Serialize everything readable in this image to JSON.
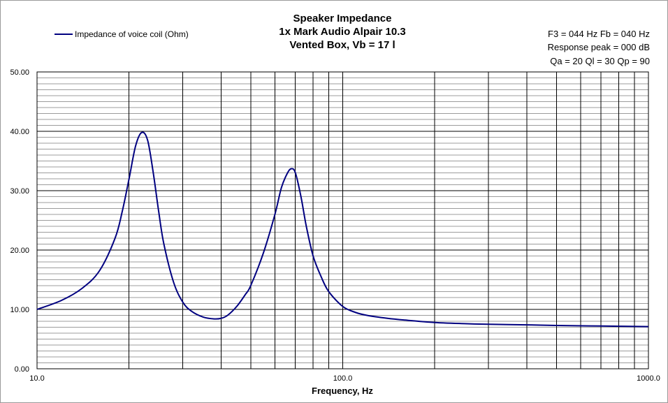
{
  "chart_data": {
    "type": "line",
    "title": [
      "Speaker Impedance",
      "1x Mark Audio Alpair 10.3",
      "Vented Box, Vb = 17 l"
    ],
    "xlabel": "Frequency, Hz",
    "ylabel": "",
    "x_scale": "log",
    "xlim": [
      10,
      1000
    ],
    "ylim": [
      0,
      50
    ],
    "x_tick_labels": [
      "10.0",
      "100.0",
      "1000.0"
    ],
    "y_tick_labels": [
      "0.00",
      "10.00",
      "20.00",
      "30.00",
      "40.00",
      "50.00"
    ],
    "grid": true,
    "legend_position": "top-left",
    "info_lines": [
      "F3 = 044  Hz  Fb = 040  Hz",
      "Response  peak = 000  dB",
      "Qa = 20  Ql = 30  Qp = 90"
    ],
    "series": [
      {
        "name": "Impedance of voice coil (Ohm)",
        "color": "#000080",
        "x": [
          10,
          12,
          14,
          16,
          18,
          19,
          20,
          21,
          22,
          23,
          24,
          25,
          26,
          28,
          30,
          32,
          35,
          38,
          40,
          42,
          45,
          48,
          50,
          55,
          60,
          63,
          66,
          68,
          70,
          73,
          76,
          80,
          85,
          90,
          100,
          110,
          120,
          140,
          160,
          200,
          250,
          300,
          400,
          500,
          700,
          1000
        ],
        "y": [
          10.0,
          11.5,
          13.5,
          16.5,
          22.0,
          26.5,
          32.0,
          37.5,
          39.8,
          38.5,
          33.0,
          26.5,
          21.0,
          14.5,
          11.2,
          9.7,
          8.7,
          8.4,
          8.5,
          9.0,
          10.5,
          12.5,
          14.0,
          19.5,
          26.0,
          30.5,
          33.0,
          33.7,
          33.0,
          29.0,
          24.0,
          19.0,
          15.5,
          13.0,
          10.5,
          9.5,
          9.0,
          8.5,
          8.2,
          7.8,
          7.6,
          7.5,
          7.4,
          7.3,
          7.2,
          7.1
        ]
      }
    ]
  }
}
